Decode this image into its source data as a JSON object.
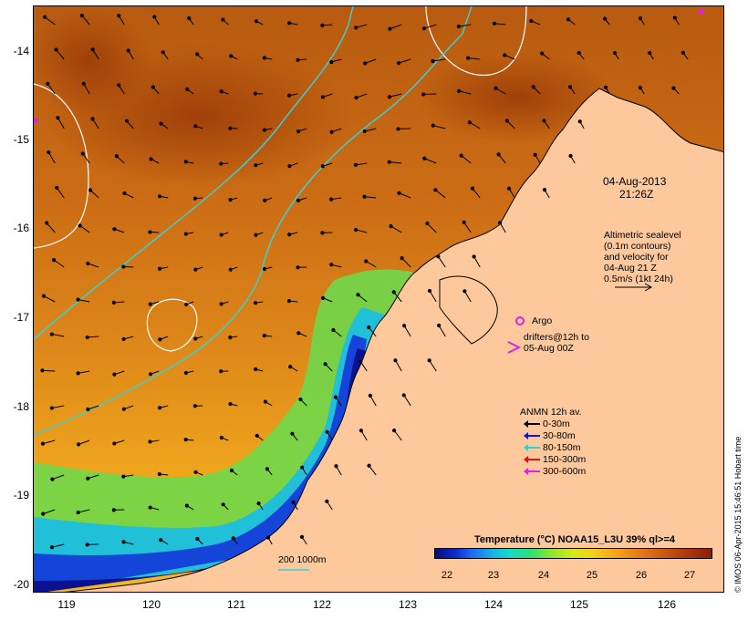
{
  "map": {
    "y_axis_labels": [
      "-14",
      "-15",
      "-16",
      "-17",
      "-18",
      "-19",
      "-20"
    ],
    "x_axis_labels": [
      "119",
      "120",
      "121",
      "122",
      "123",
      "124",
      "125",
      "126"
    ],
    "colors": {
      "land": "#fcc89c",
      "ocean_warm": "#c76a12",
      "ocean_cool": "#0c1a8a",
      "contour": "#ffffff",
      "isobath": "#3ccfcf"
    }
  },
  "annotations": {
    "datetime_line1": "04-Aug-2013",
    "datetime_line2": "21:26Z",
    "altimetry_line1": "Altimetric sealevel",
    "altimetry_line2": "(0.1m contours)",
    "altimetry_line3": "and velocity for",
    "altimetry_line4": "04-Aug 21 Z",
    "altimetry_line5": "0.5m/s (1kt 24h)",
    "argo_label": "Argo",
    "drifters_line1": "drifters@12h to",
    "drifters_line2": "05-Aug 00Z",
    "isobath_label": "200  1000m"
  },
  "anmn_legend": {
    "title": "ANMN 12h av.",
    "items": [
      {
        "label": "0-30m",
        "color": "#000000"
      },
      {
        "label": "30-80m",
        "color": "#1010e0"
      },
      {
        "label": "80-150m",
        "color": "#30d0d0"
      },
      {
        "label": "150-300m",
        "color": "#e01010"
      },
      {
        "label": "300-600m",
        "color": "#e020e0"
      }
    ]
  },
  "colorbar": {
    "title": "Temperature (°C) NOAA15_L3U 39% ql>=4",
    "ticks": [
      "22",
      "23",
      "24",
      "25",
      "26",
      "27"
    ]
  },
  "credit": "© IMOS 06-Apr-2015 15:46:51 Hobart time"
}
